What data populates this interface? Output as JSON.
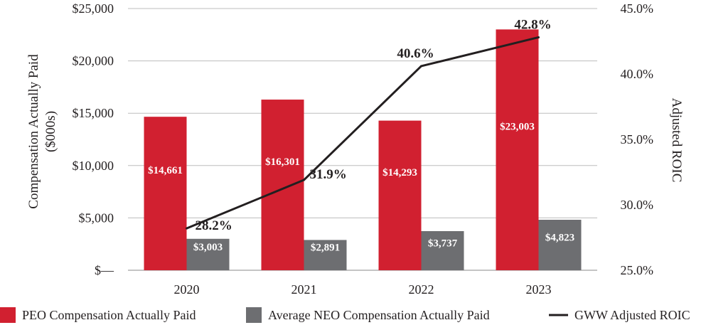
{
  "chart_data": {
    "type": "bar+line",
    "categories": [
      "2020",
      "2021",
      "2022",
      "2023"
    ],
    "series": [
      {
        "name": "PEO Compensation Actually Paid",
        "kind": "bar",
        "axis": "left",
        "color": "#d12030",
        "values": [
          14661,
          16301,
          14293,
          23003
        ],
        "labels": [
          "$14,661",
          "$16,301",
          "$14,293",
          "$23,003"
        ]
      },
      {
        "name": "Average NEO Compensation Actually Paid",
        "kind": "bar",
        "axis": "left",
        "color": "#6d6e71",
        "values": [
          3003,
          2891,
          3737,
          4823
        ],
        "labels": [
          "$3,003",
          "$2,891",
          "$3,737",
          "$4,823"
        ]
      },
      {
        "name": "GWW Adjusted ROIC",
        "kind": "line",
        "axis": "right",
        "color": "#231f20",
        "values": [
          28.2,
          31.9,
          40.6,
          42.8
        ],
        "labels": [
          "28.2%",
          "31.9%",
          "40.6%",
          "42.8%"
        ]
      }
    ],
    "y_left": {
      "label_line1": "Compensation Actually Paid",
      "label_line2": "($000s)",
      "ylim": [
        0,
        25000
      ],
      "ticks": [
        0,
        5000,
        10000,
        15000,
        20000,
        25000
      ],
      "tick_labels": [
        "$—",
        "$5,000",
        "$10,000",
        "$15,000",
        "$20,000",
        "$25,000"
      ]
    },
    "y_right": {
      "label": "Adjusted ROIC",
      "ylim": [
        25,
        45
      ],
      "ticks": [
        25,
        30,
        35,
        40,
        45
      ],
      "tick_labels": [
        "25.0%",
        "30.0%",
        "35.0%",
        "40.0%",
        "45.0%"
      ]
    },
    "gridlines": true,
    "legend_position": "bottom"
  }
}
